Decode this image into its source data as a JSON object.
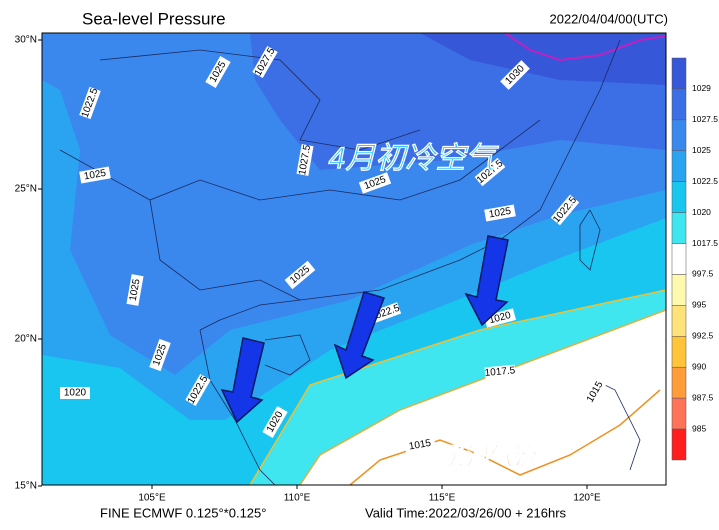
{
  "header": {
    "title": "Sea-level Pressure",
    "time": "2022/04/04/00(UTC)"
  },
  "axes": {
    "lat_labels": [
      "30°N",
      "25°N",
      "20°N",
      "15°N"
    ],
    "lon_labels": [
      "105°E",
      "110°E",
      "115°E",
      "120°E"
    ]
  },
  "footer": {
    "model": "FINE ECMWF 0.125°*0.125°",
    "valid": "Valid Time:2022/03/26/00 + 216hrs"
  },
  "annotations": {
    "cold_air": "4月初冷空气",
    "warm_flow": "暖湿气流"
  },
  "contour_labels": [
    "1022.5",
    "1025",
    "1027.5",
    "1030",
    "1025",
    "1027.5",
    "1025",
    "1027.5",
    "1025",
    "1022.5",
    "1025",
    "1025",
    "1022.5",
    "1020",
    "1025",
    "1020",
    "1022.5",
    "1020",
    "1017.5",
    "1015",
    "1015"
  ],
  "colorbar": {
    "labels": [
      "1029",
      "1027.5",
      "1025",
      "1022.5",
      "1020",
      "1017.5",
      "997.5",
      "995",
      "992.5",
      "990",
      "987.5",
      "985"
    ],
    "colors": [
      "#3657d8",
      "#3c6fe6",
      "#3a88ee",
      "#2aa4f0",
      "#18c6ef",
      "#3fe6f0",
      "#ffffff",
      "#fff9b0",
      "#ffe27a",
      "#ffc43a",
      "#ff9d3a",
      "#ff7358",
      "#ff1e1e"
    ]
  }
}
